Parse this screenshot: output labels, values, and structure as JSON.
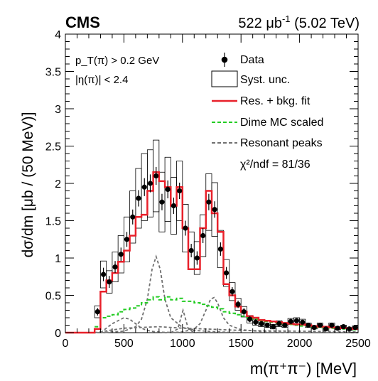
{
  "header": {
    "experiment": "CMS",
    "luminosity_value": "522",
    "luminosity_unit": "μb",
    "luminosity_exp": "-1",
    "energy": "(5.02 TeV)"
  },
  "selection": {
    "pt_cut": "p_T(π) > 0.2 GeV",
    "eta_cut": "|η(π)| < 2.4"
  },
  "fit_quality": "χ²/ndf = 81/36",
  "colors": {
    "data": "#000000",
    "fit": "#e8202a",
    "dime": "#22cc22",
    "resonant": "#707070",
    "syst": "#000000"
  },
  "chart_data": {
    "type": "histogram",
    "xlabel": "m(π⁺π⁻) [MeV]",
    "ylabel": "dσ/dm [μb / (50 MeV)]",
    "xlim": [
      0,
      2500
    ],
    "ylim": [
      0,
      4
    ],
    "xticks": [
      0,
      500,
      1000,
      1500,
      2000,
      2500
    ],
    "yticks": [
      0,
      0.5,
      1,
      1.5,
      2,
      2.5,
      3,
      3.5,
      4
    ],
    "legend_position": "top-right",
    "legend": [
      "Data",
      "Syst. unc.",
      "Res. + bkg. fit",
      "Dime MC scaled",
      "Resonant peaks"
    ],
    "data": {
      "name": "Data",
      "x": [
        275,
        325,
        375,
        425,
        475,
        525,
        575,
        625,
        675,
        725,
        775,
        825,
        875,
        925,
        975,
        1025,
        1075,
        1125,
        1175,
        1225,
        1275,
        1325,
        1375,
        1425,
        1475,
        1525,
        1575,
        1625,
        1675,
        1725,
        1775,
        1825,
        1875,
        1925,
        1975,
        2025,
        2075,
        2125,
        2175,
        2225,
        2275,
        2325,
        2375,
        2425,
        2475
      ],
      "y": [
        0.28,
        0.78,
        0.68,
        0.88,
        1.05,
        1.25,
        1.55,
        1.8,
        1.95,
        2.0,
        2.1,
        1.75,
        1.92,
        1.7,
        1.9,
        1.4,
        1.1,
        1.0,
        1.3,
        1.75,
        1.65,
        1.12,
        0.8,
        0.55,
        0.38,
        0.28,
        0.18,
        0.14,
        0.12,
        0.1,
        0.08,
        0.12,
        0.1,
        0.15,
        0.16,
        0.14,
        0.1,
        0.07,
        0.1,
        0.05,
        0.1,
        0.06,
        0.08,
        0.05,
        0.07
      ],
      "stat_err": [
        0.05,
        0.09,
        0.08,
        0.08,
        0.09,
        0.1,
        0.1,
        0.11,
        0.12,
        0.12,
        0.12,
        0.11,
        0.12,
        0.11,
        0.11,
        0.1,
        0.09,
        0.09,
        0.1,
        0.11,
        0.11,
        0.09,
        0.08,
        0.06,
        0.05,
        0.05,
        0.04,
        0.04,
        0.03,
        0.03,
        0.03,
        0.03,
        0.03,
        0.03,
        0.03,
        0.03,
        0.03,
        0.03,
        0.03,
        0.02,
        0.03,
        0.02,
        0.02,
        0.02,
        0.02
      ],
      "syst_err": [
        0.08,
        0.18,
        0.15,
        0.2,
        0.25,
        0.3,
        0.35,
        0.4,
        0.45,
        0.45,
        0.48,
        0.4,
        0.43,
        0.38,
        0.4,
        0.32,
        0.25,
        0.22,
        0.28,
        0.38,
        0.36,
        0.25,
        0.18,
        0.12,
        0.08,
        0.07,
        0.05,
        0.04,
        0.04,
        0.03,
        0.03,
        0.04,
        0.03,
        0.04,
        0.04,
        0.04,
        0.03,
        0.02,
        0.03,
        0.02,
        0.03,
        0.02,
        0.02,
        0.02,
        0.02
      ]
    },
    "fit": {
      "name": "Res. + bkg. fit",
      "bin_edges": [
        0,
        250,
        300,
        350,
        400,
        450,
        500,
        550,
        600,
        650,
        700,
        750,
        800,
        850,
        900,
        950,
        1000,
        1050,
        1100,
        1150,
        1200,
        1250,
        1300,
        1350,
        1400,
        1450,
        1500,
        1550,
        1600,
        1650,
        1700,
        1750,
        1800,
        1850,
        1900,
        1950,
        2000,
        2050,
        2100,
        2150,
        2200,
        2250,
        2300,
        2350,
        2400,
        2450,
        2500
      ],
      "values": [
        0,
        0.05,
        0.55,
        0.7,
        0.8,
        0.95,
        1.1,
        1.3,
        1.55,
        1.58,
        1.9,
        2.15,
        2.03,
        1.95,
        1.7,
        1.95,
        1.4,
        0.85,
        0.85,
        1.4,
        1.9,
        1.6,
        1.35,
        0.65,
        0.5,
        0.35,
        0.28,
        0.22,
        0.2,
        0.17,
        0.16,
        0.15,
        0.14,
        0.13,
        0.12,
        0.11,
        0.11,
        0.1,
        0.09,
        0.08,
        0.08,
        0.07,
        0.07,
        0.06,
        0.06,
        0.05
      ]
    },
    "dime": {
      "name": "Dime MC scaled",
      "bin_edges": [
        250,
        300,
        350,
        400,
        450,
        500,
        550,
        600,
        650,
        700,
        750,
        800,
        850,
        900,
        950,
        1000,
        1050,
        1100,
        1150,
        1200,
        1250,
        1300,
        1350,
        1400,
        1450,
        1500,
        1550,
        1600,
        1650,
        1700,
        1750,
        1800,
        1850,
        1900,
        1950,
        2000,
        2050,
        2100,
        2150,
        2200,
        2250,
        2300,
        2350,
        2400,
        2450,
        2500
      ],
      "values": [
        0.08,
        0.2,
        0.22,
        0.24,
        0.28,
        0.31,
        0.33,
        0.36,
        0.4,
        0.44,
        0.48,
        0.44,
        0.48,
        0.44,
        0.46,
        0.42,
        0.42,
        0.4,
        0.38,
        0.36,
        0.34,
        0.32,
        0.28,
        0.26,
        0.24,
        0.22,
        0.2,
        0.18,
        0.16,
        0.15,
        0.14,
        0.13,
        0.12,
        0.11,
        0.1,
        0.09,
        0.09,
        0.08,
        0.07,
        0.07,
        0.06,
        0.06,
        0.05,
        0.05,
        0.04
      ]
    },
    "resonant_peaks": {
      "name": "Resonant peaks",
      "curves": [
        {
          "x": [
            300,
            400,
            500,
            550,
            600,
            650,
            700,
            750,
            800,
            850,
            900,
            1000,
            1200,
            1500,
            2000,
            2500
          ],
          "y": [
            0.0,
            0.12,
            0.2,
            0.18,
            0.12,
            0.06,
            0.03,
            0.015,
            0.008,
            0.005,
            0.004,
            0.002,
            0.001,
            0,
            0,
            0
          ]
        },
        {
          "x": [
            300,
            500,
            600,
            650,
            700,
            740,
            775,
            810,
            850,
            900,
            1000,
            1100,
            1300,
            1500
          ],
          "y": [
            0.0,
            0.02,
            0.08,
            0.18,
            0.45,
            0.85,
            1.02,
            0.85,
            0.45,
            0.2,
            0.07,
            0.03,
            0.01,
            0
          ]
        },
        {
          "x": [
            900,
            960,
            990,
            1005,
            1020,
            1050,
            1100
          ],
          "y": [
            0.0,
            0.05,
            0.22,
            0.3,
            0.22,
            0.05,
            0.0
          ]
        },
        {
          "x": [
            900,
            1000,
            1100,
            1150,
            1200,
            1240,
            1270,
            1300,
            1350,
            1400,
            1500,
            1700,
            2000
          ],
          "y": [
            0.0,
            0.01,
            0.05,
            0.12,
            0.3,
            0.45,
            0.47,
            0.4,
            0.2,
            0.1,
            0.04,
            0.01,
            0
          ]
        },
        {
          "x": [
            250,
            500,
            800,
            1000,
            1200,
            1500,
            2000,
            2500
          ],
          "y": [
            0.0,
            0.06,
            0.08,
            0.06,
            0.05,
            0.03,
            0.02,
            0.01
          ]
        }
      ]
    }
  }
}
